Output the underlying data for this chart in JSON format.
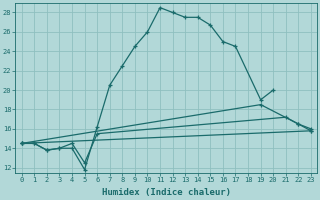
{
  "xlabel": "Humidex (Indice chaleur)",
  "bg_color": "#b2d8d8",
  "grid_color": "#8fbfbf",
  "line_color": "#1a6b6b",
  "xlim": [
    -0.5,
    23.5
  ],
  "ylim": [
    11.5,
    29.0
  ],
  "xticks": [
    0,
    1,
    2,
    3,
    4,
    5,
    6,
    7,
    8,
    9,
    10,
    11,
    12,
    13,
    14,
    15,
    16,
    17,
    18,
    19,
    20,
    21,
    22,
    23
  ],
  "yticks": [
    12,
    14,
    16,
    18,
    20,
    22,
    24,
    26,
    28
  ],
  "line1_x": [
    0,
    1,
    2,
    3,
    4,
    5,
    6,
    7,
    8,
    9,
    10,
    11,
    12,
    13,
    14,
    15,
    16,
    17,
    19,
    20
  ],
  "line1_y": [
    14.5,
    14.5,
    13.8,
    14.0,
    14.0,
    11.8,
    16.2,
    20.5,
    22.5,
    24.5,
    26.0,
    28.5,
    28.0,
    27.5,
    27.5,
    26.7,
    25.0,
    24.5,
    19.0,
    20.0
  ],
  "line2_x": [
    0,
    1,
    2,
    3,
    4,
    5,
    6,
    21,
    22,
    23
  ],
  "line2_y": [
    14.5,
    14.5,
    13.8,
    14.0,
    14.5,
    12.5,
    15.5,
    17.2,
    16.5,
    16.0
  ],
  "line3_x": [
    0,
    19,
    22,
    23
  ],
  "line3_y": [
    14.5,
    18.5,
    16.5,
    15.8
  ],
  "line4_x": [
    0,
    23
  ],
  "line4_y": [
    14.5,
    15.8
  ],
  "marker_size": 3,
  "lw": 0.9,
  "xlabel_fontsize": 6.5,
  "tick_fontsize": 5.0
}
